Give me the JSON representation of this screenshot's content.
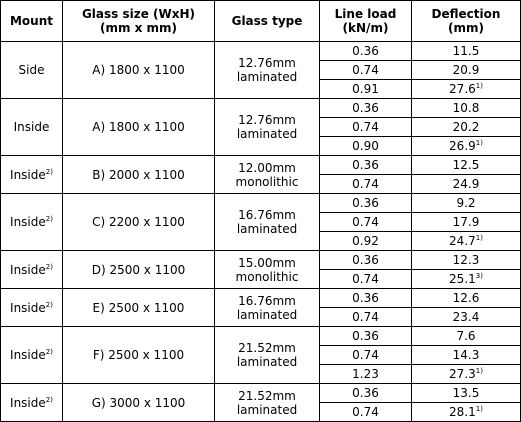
{
  "table": {
    "header": [
      "Mount",
      "Glass size (WxH)\n(mm x mm)",
      "Glass type",
      "Line load\n(kN/m)",
      "Deflection\n(mm)"
    ],
    "groups": [
      {
        "mount": "Side",
        "size": "A) 1800 x 1100",
        "type": "12.76mm\nlaminated",
        "rows": [
          {
            "load": "0.36",
            "deflection": "11.5"
          },
          {
            "load": "0.74",
            "deflection": "20.9"
          },
          {
            "load": "0.91",
            "deflection": "27.6",
            "note": "1)"
          }
        ]
      },
      {
        "mount": "Inside",
        "size": "A) 1800 x 1100",
        "type": "12.76mm\nlaminated",
        "rows": [
          {
            "load": "0.36",
            "deflection": "10.8"
          },
          {
            "load": "0.74",
            "deflection": "20.2"
          },
          {
            "load": "0.90",
            "deflection": "26.9",
            "note": "1)"
          }
        ]
      },
      {
        "mount": "Inside",
        "mount_note": "2)",
        "size": "B) 2000 x 1100",
        "type": "12.00mm\nmonolithic",
        "rows": [
          {
            "load": "0.36",
            "deflection": "12.5"
          },
          {
            "load": "0.74",
            "deflection": "24.9"
          }
        ]
      },
      {
        "mount": "Inside",
        "mount_note": "2)",
        "size": "C) 2200 x 1100",
        "type": "16.76mm\nlaminated",
        "rows": [
          {
            "load": "0.36",
            "deflection": "9.2"
          },
          {
            "load": "0.74",
            "deflection": "17.9"
          },
          {
            "load": "0.92",
            "deflection": "24.7",
            "note": "1)"
          }
        ]
      },
      {
        "mount": "Inside",
        "mount_note": "2)",
        "size": "D) 2500 x 1100",
        "type": "15.00mm\nmonolithic",
        "rows": [
          {
            "load": "0.36",
            "deflection": "12.3"
          },
          {
            "load": "0.74",
            "deflection": "25.1",
            "note": "3)"
          }
        ]
      },
      {
        "mount": "Inside",
        "mount_note": "2)",
        "size": "E) 2500 x 1100",
        "type": "16.76mm\nlaminated",
        "rows": [
          {
            "load": "0.36",
            "deflection": "12.6"
          },
          {
            "load": "0.74",
            "deflection": "23.4"
          }
        ]
      },
      {
        "mount": "Inside",
        "mount_note": "2)",
        "size": "F) 2500 x 1100",
        "type": "21.52mm\nlaminated",
        "rows": [
          {
            "load": "0.36",
            "deflection": "7.6"
          },
          {
            "load": "0.74",
            "deflection": "14.3"
          },
          {
            "load": "1.23",
            "deflection": "27.3",
            "note": "1)"
          }
        ]
      },
      {
        "mount": "Inside",
        "mount_note": "2)",
        "size": "G) 3000 x 1100",
        "type": "21.52mm\nlaminated",
        "rows": [
          {
            "load": "0.36",
            "deflection": "13.5"
          },
          {
            "load": "0.74",
            "deflection": "28.1",
            "note": "1)"
          }
        ]
      }
    ]
  }
}
